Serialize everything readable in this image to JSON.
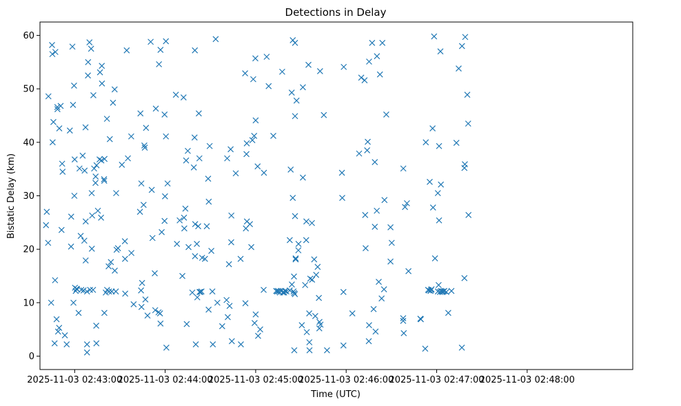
{
  "chart_data": {
    "type": "scatter",
    "title": "Detections in Delay",
    "xlabel": "Time (UTC)",
    "ylabel": "Bistatic Delay (km)",
    "marker": "x",
    "color": "#1f77b4",
    "xlim_seconds": [
      -23,
      370
    ],
    "ylim": [
      -2.5,
      62.5
    ],
    "x_ticks": [
      {
        "t": 0,
        "label": "2025-11-03 02:43:00"
      },
      {
        "t": 60,
        "label": "2025-11-03 02:44:00"
      },
      {
        "t": 120,
        "label": "2025-11-03 02:45:00"
      },
      {
        "t": 180,
        "label": "2025-11-03 02:46:00"
      },
      {
        "t": 240,
        "label": "2025-11-03 02:47:00"
      },
      {
        "t": 300,
        "label": "2025-11-03 02:48:00"
      }
    ],
    "y_ticks": [
      0,
      10,
      20,
      30,
      40,
      50,
      60
    ],
    "x_reference": "2025-11-03 02:43:00 UTC",
    "x_units": "seconds after 2025-11-03 02:43:00",
    "points": [
      [
        -19,
        24.5
      ],
      [
        -18.5,
        27
      ],
      [
        -17.6,
        21.2
      ],
      [
        -17.4,
        48.6
      ],
      [
        -15.6,
        10
      ],
      [
        -15,
        58.2
      ],
      [
        -14.8,
        56.5
      ],
      [
        -14.6,
        40
      ],
      [
        -14.1,
        43.8
      ],
      [
        -13.3,
        2.4
      ],
      [
        -13,
        14.2
      ],
      [
        -12.8,
        56.9
      ],
      [
        -12,
        6.9
      ],
      [
        -11.5,
        46.6
      ],
      [
        -11.4,
        46.2
      ],
      [
        -11,
        4.6
      ],
      [
        -10.3,
        5.3
      ],
      [
        -10.2,
        42.6
      ],
      [
        -9.3,
        46.8
      ],
      [
        -8.7,
        23.6
      ],
      [
        -8.3,
        36
      ],
      [
        -8,
        34.5
      ],
      [
        -6.5,
        3.9
      ],
      [
        -5.3,
        2.2
      ],
      [
        -3.2,
        42.2
      ],
      [
        -2.4,
        20.5
      ],
      [
        -2.3,
        26.1
      ],
      [
        -1.5,
        57.9
      ],
      [
        -1.1,
        47
      ],
      [
        -0.8,
        10
      ],
      [
        -0.4,
        50.6
      ],
      [
        -0.2,
        30
      ],
      [
        0,
        36.8
      ],
      [
        0.2,
        12.8
      ],
      [
        0.7,
        12.2
      ],
      [
        1.3,
        12.6
      ],
      [
        1.6,
        12.5
      ],
      [
        2.6,
        8.1
      ],
      [
        3.2,
        35.1
      ],
      [
        4,
        22.5
      ],
      [
        4.4,
        12.4
      ],
      [
        5.3,
        37.5
      ],
      [
        5.9,
        12.3
      ],
      [
        6.4,
        21.6
      ],
      [
        6.6,
        34.7
      ],
      [
        7.2,
        42.8
      ],
      [
        7.3,
        17.9
      ],
      [
        7.3,
        25.2
      ],
      [
        8.2,
        12.1
      ],
      [
        8.2,
        0.7
      ],
      [
        8.2,
        2.2
      ],
      [
        8.8,
        52.5
      ],
      [
        8.9,
        55
      ],
      [
        9.8,
        58.7
      ],
      [
        10.2,
        12.4
      ],
      [
        10.9,
        57.5
      ],
      [
        11.3,
        30.5
      ],
      [
        11.4,
        20.1
      ],
      [
        11.6,
        26.3
      ],
      [
        12.2,
        12.4
      ],
      [
        12.4,
        48.8
      ],
      [
        12.9,
        35.1
      ],
      [
        13.8,
        32.4
      ],
      [
        13.9,
        33.6
      ],
      [
        14.3,
        5.7
      ],
      [
        14.4,
        2.4
      ],
      [
        14.5,
        35.7
      ],
      [
        15.4,
        27.2
      ],
      [
        16.5,
        36.8
      ],
      [
        16.8,
        53.1
      ],
      [
        17.5,
        25.9
      ],
      [
        17.7,
        36.6
      ],
      [
        18,
        54.3
      ],
      [
        18.1,
        51
      ],
      [
        19.5,
        33.1
      ],
      [
        19.6,
        32.8
      ],
      [
        19.7,
        8.1
      ],
      [
        19.8,
        36.9
      ],
      [
        20.6,
        11.9
      ],
      [
        21.4,
        44.4
      ],
      [
        21.5,
        12.4
      ],
      [
        22.5,
        16.8
      ],
      [
        22.8,
        12.1
      ],
      [
        23.3,
        40.6
      ],
      [
        24,
        17.6
      ],
      [
        24.6,
        12.1
      ],
      [
        25.4,
        47.4
      ],
      [
        26.5,
        49.9
      ],
      [
        26.6,
        16
      ],
      [
        27.3,
        12.1
      ],
      [
        27.5,
        30.5
      ],
      [
        27.8,
        19.9
      ],
      [
        28.7,
        20.2
      ],
      [
        31.3,
        35.8
      ],
      [
        33.3,
        21.5
      ],
      [
        33.4,
        18.2
      ],
      [
        33.5,
        11.7
      ],
      [
        34.5,
        57.2
      ],
      [
        35.3,
        37
      ],
      [
        37.5,
        41.1
      ],
      [
        37.6,
        19.3
      ],
      [
        39.1,
        9.7
      ],
      [
        43.3,
        27
      ],
      [
        43.6,
        45.4
      ],
      [
        44,
        12.3
      ],
      [
        44.2,
        32.3
      ],
      [
        44.3,
        9.2
      ],
      [
        44.7,
        13.7
      ],
      [
        45.7,
        28.3
      ],
      [
        46.2,
        39.4
      ],
      [
        46.5,
        39
      ],
      [
        46.9,
        10.6
      ],
      [
        47.3,
        42.7
      ],
      [
        48.3,
        7.6
      ],
      [
        50.4,
        58.8
      ],
      [
        51.1,
        31.1
      ],
      [
        51.6,
        22.1
      ],
      [
        53.1,
        15.5
      ],
      [
        53.4,
        8.6
      ],
      [
        53.8,
        46.3
      ],
      [
        55.6,
        8.2
      ],
      [
        55.9,
        54.6
      ],
      [
        56.6,
        8
      ],
      [
        56.9,
        57.3
      ],
      [
        56.9,
        6.1
      ],
      [
        57.7,
        23.2
      ],
      [
        59.6,
        25.3
      ],
      [
        59.6,
        45.2
      ],
      [
        59.9,
        29.9
      ],
      [
        60.5,
        58.9
      ],
      [
        60.5,
        41.1
      ],
      [
        60.8,
        1.6
      ],
      [
        61.6,
        32.3
      ],
      [
        67.1,
        48.9
      ],
      [
        67.8,
        21
      ],
      [
        69.6,
        25.4
      ],
      [
        71.4,
        15
      ],
      [
        72.2,
        48.4
      ],
      [
        72.5,
        25.9
      ],
      [
        72.7,
        23.9
      ],
      [
        73.4,
        27.6
      ],
      [
        73.9,
        36.6
      ],
      [
        74.3,
        6
      ],
      [
        75,
        38.4
      ],
      [
        75.5,
        20.4
      ],
      [
        78,
        11.9
      ],
      [
        79,
        35.3
      ],
      [
        79.5,
        40.9
      ],
      [
        79.7,
        57.2
      ],
      [
        79.9,
        24.7
      ],
      [
        79.8,
        18.7
      ],
      [
        80.3,
        2.2
      ],
      [
        81,
        21
      ],
      [
        81.3,
        11
      ],
      [
        81.9,
        24.3
      ],
      [
        82.3,
        45.4
      ],
      [
        82.7,
        37
      ],
      [
        82.8,
        12
      ],
      [
        83.4,
        12
      ],
      [
        84.1,
        12.1
      ],
      [
        84.5,
        18.4
      ],
      [
        86.4,
        18.2
      ],
      [
        87.6,
        24.3
      ],
      [
        88.5,
        33.2
      ],
      [
        88.8,
        8.7
      ],
      [
        88.9,
        28.9
      ],
      [
        89.5,
        39.3
      ],
      [
        90.6,
        19.7
      ],
      [
        91.3,
        12.1
      ],
      [
        91.6,
        2.2
      ],
      [
        93.5,
        59.3
      ],
      [
        94.6,
        10
      ],
      [
        97.8,
        5.6
      ],
      [
        100.7,
        10.5
      ],
      [
        101.1,
        37
      ],
      [
        101.5,
        7.3
      ],
      [
        102.3,
        17.2
      ],
      [
        102.7,
        9.4
      ],
      [
        103.4,
        38.7
      ],
      [
        103.9,
        26.3
      ],
      [
        103.8,
        21.3
      ],
      [
        104.2,
        2.8
      ],
      [
        106.8,
        34.2
      ],
      [
        110,
        18.2
      ],
      [
        110.2,
        2.2
      ],
      [
        113,
        52.9
      ],
      [
        113.2,
        9.9
      ],
      [
        113.5,
        23.9
      ],
      [
        113.9,
        37.8
      ],
      [
        114.1,
        39.8
      ],
      [
        114.2,
        25.2
      ],
      [
        116.2,
        24.7
      ],
      [
        117.1,
        20.4
      ],
      [
        117.8,
        40.4
      ],
      [
        118.4,
        51.8
      ],
      [
        119,
        41.2
      ],
      [
        119.3,
        6.2
      ],
      [
        119.8,
        55.7
      ],
      [
        120,
        7.8
      ],
      [
        120,
        44.1
      ],
      [
        121.3,
        35.5
      ],
      [
        121.6,
        3.8
      ],
      [
        123,
        5
      ],
      [
        125.3,
        12.4
      ],
      [
        125.5,
        34.3
      ],
      [
        127.3,
        56
      ],
      [
        128.6,
        50.5
      ],
      [
        131.7,
        41.2
      ],
      [
        133.6,
        12.2
      ],
      [
        134.2,
        12.1
      ],
      [
        134.8,
        12.2
      ],
      [
        135.4,
        12.1
      ],
      [
        136,
        11.9
      ],
      [
        136.8,
        12.2
      ],
      [
        137.6,
        53.2
      ],
      [
        138.1,
        11.9
      ],
      [
        138.6,
        12
      ],
      [
        138.9,
        11.9
      ],
      [
        139.4,
        12.2
      ],
      [
        140.4,
        12.1
      ],
      [
        142.6,
        12.3
      ],
      [
        142.6,
        21.7
      ],
      [
        143.2,
        34.9
      ],
      [
        143.9,
        49.3
      ],
      [
        144,
        13.4
      ],
      [
        144.6,
        29.6
      ],
      [
        144.6,
        59.1
      ],
      [
        145.1,
        12.1
      ],
      [
        145.5,
        11.8
      ],
      [
        145.4,
        14.9
      ],
      [
        145.6,
        1.1
      ],
      [
        146,
        11.6
      ],
      [
        146.1,
        26.2
      ],
      [
        146.1,
        58.6
      ],
      [
        146.1,
        44.9
      ],
      [
        146.5,
        18.1
      ],
      [
        146.5,
        18.3
      ],
      [
        147.1,
        47.8
      ],
      [
        148.4,
        21
      ],
      [
        148.3,
        19.8
      ],
      [
        150.6,
        5.8
      ],
      [
        151.3,
        33.4
      ],
      [
        151.3,
        50.3
      ],
      [
        152.8,
        13.3
      ],
      [
        153.5,
        21.7
      ],
      [
        153.6,
        25.2
      ],
      [
        153.9,
        4.5
      ],
      [
        155,
        54.5
      ],
      [
        155.5,
        8
      ],
      [
        155.6,
        2.6
      ],
      [
        155.7,
        1.1
      ],
      [
        156.2,
        14.5
      ],
      [
        157.4,
        14.3
      ],
      [
        157.3,
        24.9
      ],
      [
        158.8,
        18.1
      ],
      [
        159.5,
        7.5
      ],
      [
        160.1,
        15.2
      ],
      [
        161.1,
        16.7
      ],
      [
        161.9,
        10.9
      ],
      [
        162.2,
        5.2
      ],
      [
        162.3,
        6.4
      ],
      [
        162.7,
        53.3
      ],
      [
        163,
        5.9
      ],
      [
        165.2,
        45.1
      ],
      [
        167.3,
        1.1
      ],
      [
        177.2,
        34.3
      ],
      [
        177.4,
        29.6
      ],
      [
        178.2,
        12
      ],
      [
        178.2,
        2
      ],
      [
        178.4,
        54.1
      ],
      [
        184.1,
        8
      ],
      [
        188.6,
        37.9
      ],
      [
        190,
        52.1
      ],
      [
        192.2,
        51.6
      ],
      [
        192.6,
        26.4
      ],
      [
        192.9,
        20.2
      ],
      [
        193.9,
        38.5
      ],
      [
        194.3,
        40.1
      ],
      [
        195,
        2.8
      ],
      [
        195.2,
        5.8
      ],
      [
        195.2,
        55.1
      ],
      [
        197.2,
        58.6
      ],
      [
        198.2,
        8.8
      ],
      [
        199,
        36.3
      ],
      [
        199,
        24.2
      ],
      [
        199.5,
        4.6
      ],
      [
        200.3,
        27.2
      ],
      [
        200.4,
        56.1
      ],
      [
        201.6,
        13.9
      ],
      [
        202.4,
        52.7
      ],
      [
        203.5,
        10.8
      ],
      [
        204,
        58.6
      ],
      [
        205.1,
        12.5
      ],
      [
        205.4,
        29.2
      ],
      [
        206.6,
        45.2
      ],
      [
        209.4,
        24.1
      ],
      [
        209.4,
        17.7
      ],
      [
        210.2,
        21.2
      ],
      [
        217.8,
        7.1
      ],
      [
        217.8,
        6.6
      ],
      [
        217.9,
        35.1
      ],
      [
        218.2,
        4.3
      ],
      [
        219,
        27.9
      ],
      [
        220.3,
        28.6
      ],
      [
        221.3,
        15.9
      ],
      [
        229.2,
        7
      ],
      [
        229.5,
        6.9
      ],
      [
        232.4,
        1.4
      ],
      [
        232.8,
        40
      ],
      [
        234.3,
        12.4
      ],
      [
        234.8,
        12.3
      ],
      [
        235.4,
        32.6
      ],
      [
        235.9,
        12.2
      ],
      [
        236.3,
        12.4
      ],
      [
        236.6,
        12.5
      ],
      [
        237.3,
        42.6
      ],
      [
        237.6,
        27.8
      ],
      [
        238.3,
        59.8
      ],
      [
        238.9,
        18.3
      ],
      [
        240.8,
        12.1
      ],
      [
        240.8,
        30.5
      ],
      [
        241.3,
        13.3
      ],
      [
        241.6,
        39.3
      ],
      [
        241.6,
        25.4
      ],
      [
        242.2,
        12
      ],
      [
        242.5,
        57
      ],
      [
        242.8,
        12.2
      ],
      [
        242.8,
        32.1
      ],
      [
        243.4,
        12.1
      ],
      [
        243.9,
        12
      ],
      [
        244.5,
        12.1
      ],
      [
        245.1,
        12.2
      ],
      [
        246.4,
        12
      ],
      [
        247.7,
        8.1
      ],
      [
        249.8,
        12.2
      ],
      [
        253.1,
        39.9
      ],
      [
        254.6,
        53.8
      ],
      [
        256.7,
        1.6
      ],
      [
        256.8,
        58
      ],
      [
        258.4,
        14.6
      ],
      [
        258.4,
        35.2
      ],
      [
        258.7,
        35.9
      ],
      [
        258.9,
        59.7
      ],
      [
        260.3,
        48.9
      ],
      [
        260.9,
        43.5
      ],
      [
        261.1,
        26.4
      ]
    ]
  }
}
